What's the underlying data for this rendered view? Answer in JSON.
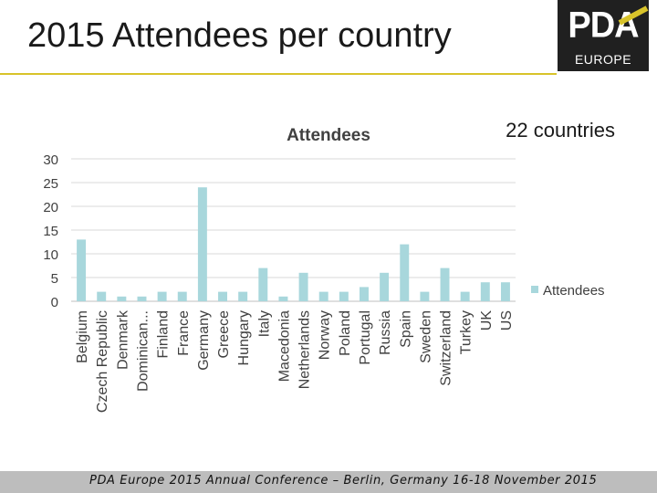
{
  "slide": {
    "title": "2015 Attendees per country",
    "countries_note": "22 countries",
    "footer": "PDA Europe 2015 Annual Conference  –  Berlin, Germany 16-18 November 2015"
  },
  "logo": {
    "main": "PDA",
    "sub": "EUROPE",
    "accent_color": "#d8c32a",
    "background_color": "#202020"
  },
  "chart_data": {
    "type": "bar",
    "title": "Attendees",
    "xlabel": "",
    "ylabel": "",
    "ylim": [
      0,
      30
    ],
    "yticks": [
      0,
      5,
      10,
      15,
      20,
      25,
      30
    ],
    "grid": true,
    "legend_position": "right",
    "bar_color": "#a8d7dc",
    "categories": [
      "Belgium",
      "Czech Republic",
      "Denmark",
      "Dominican...",
      "Finland",
      "France",
      "Germany",
      "Greece",
      "Hungary",
      "Italy",
      "Macedonia",
      "Netherlands",
      "Norway",
      "Poland",
      "Portugal",
      "Russia",
      "Spain",
      "Sweden",
      "Switzerland",
      "Turkey",
      "UK",
      "US"
    ],
    "series": [
      {
        "name": "Attendees",
        "values": [
          13,
          2,
          1,
          1,
          2,
          2,
          24,
          2,
          2,
          7,
          1,
          6,
          2,
          2,
          3,
          6,
          12,
          2,
          7,
          2,
          4,
          4
        ]
      }
    ]
  }
}
